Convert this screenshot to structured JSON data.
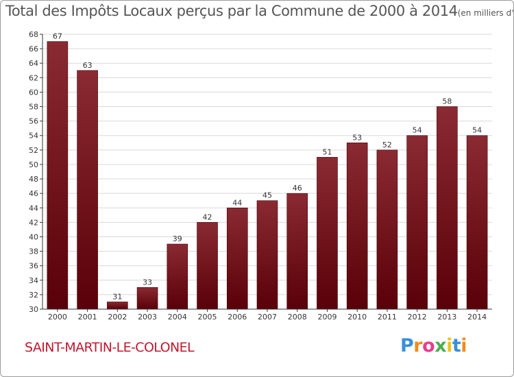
{
  "chart_data": {
    "type": "bar",
    "title": "Total des Impôts Locaux perçus par la Commune de 2000 à 2014",
    "unit_label": "(en milliers d'€)",
    "categories": [
      "2000",
      "2001",
      "2002",
      "2003",
      "2004",
      "2005",
      "2006",
      "2007",
      "2008",
      "2009",
      "2010",
      "2011",
      "2012",
      "2013",
      "2014"
    ],
    "values": [
      67,
      63,
      31,
      33,
      39,
      42,
      44,
      45,
      46,
      51,
      53,
      52,
      54,
      58,
      54
    ],
    "ylim": [
      30,
      68
    ],
    "yticks": [
      30,
      32,
      34,
      36,
      38,
      40,
      42,
      44,
      46,
      48,
      50,
      52,
      54,
      56,
      58,
      60,
      62,
      64,
      66,
      68
    ],
    "grid": true,
    "legend": "none",
    "xlabel": "",
    "ylabel": "",
    "colors": {
      "bar_top": "#8a2a32",
      "bar_bottom": "#5a0008",
      "grid": "#d8d8d8",
      "axis": "#333333",
      "text": "#333333"
    }
  },
  "footer": {
    "commune": "SAINT-MARTIN-LE-COLONEL",
    "logo_letters": [
      "P",
      "r",
      "o",
      "x",
      "i",
      "t",
      "i"
    ],
    "logo_colors": [
      "#3a8fd8",
      "#f28c1c",
      "#e83e8c",
      "#4caf50",
      "#f2c21c",
      "#3a8fd8",
      "#f28c1c"
    ]
  }
}
